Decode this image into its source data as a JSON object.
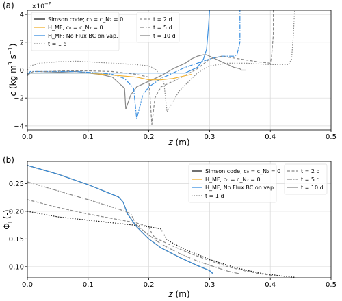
{
  "chart_data": [
    {
      "type": "line",
      "panel_label": "(a)",
      "xlabel_var": "z",
      "xlabel_unit": " (m)",
      "ylabel_var": "c",
      "ylabel_unit": " (kg m",
      "ylabel_exp1": "3",
      "ylabel_mid": " s",
      "ylabel_exp2": "−1",
      "ylabel_end": ")",
      "xlim": [
        0,
        0.5
      ],
      "ylim": [
        -4.3,
        4.3
      ],
      "xticks": [
        "0.0",
        "0.1",
        "0.2",
        "0.3",
        "0.4",
        "0.5"
      ],
      "yticks": [
        "−4",
        "−2",
        "0",
        "2",
        "4"
      ],
      "ytick_values": [
        -4,
        -2,
        0,
        2,
        4
      ],
      "offset_text_base": "×10",
      "offset_text_exp": "−6",
      "grid": true,
      "legend_method": [
        {
          "label": "Simson code; c₀ = c_N₂ = 0",
          "color": "#222222",
          "dash": ""
        },
        {
          "label": "H_MF; c₀ = c_N₂ = 0",
          "color": "#f0b030",
          "dash": ""
        },
        {
          "label": "H_MF; No Flux BC on vap.",
          "color": "#3a8fe0",
          "dash": ""
        },
        {
          "label": "t = 1 d",
          "color": "#888888",
          "dash": "1.5,2"
        }
      ],
      "legend_time": [
        {
          "label": "t = 2 d",
          "color": "#888888",
          "dash": "4,2.5"
        },
        {
          "label": "t = 5 d",
          "color": "#888888",
          "dash": "7,2,1.5,2"
        },
        {
          "label": "t = 10 d",
          "color": "#888888",
          "dash": ""
        }
      ],
      "series": [
        {
          "x": [
            0,
            0.005,
            0.02,
            0.05,
            0.08,
            0.1,
            0.12,
            0.14,
            0.15,
            0.16,
            0.162,
            0.17,
            0.18,
            0.2,
            0.22,
            0.24,
            0.26,
            0.27,
            0.28,
            0.29,
            0.295,
            0.3,
            0.32,
            0.34,
            0.35,
            0.352,
            0.36
          ],
          "y": [
            -0.4,
            -0.2,
            -0.2,
            -0.15,
            -0.1,
            -0.2,
            -0.3,
            -0.5,
            -0.9,
            -1.3,
            -2.8,
            -1.8,
            -1.2,
            -0.8,
            -0.4,
            0.1,
            0.5,
            0.8,
            1.0,
            1.1,
            1.1,
            1.0,
            0.6,
            0.2,
            0.1,
            0.0,
            0.0
          ],
          "color": "#888888",
          "dash": ""
        },
        {
          "x": [
            0,
            0.005,
            0.02,
            0.05,
            0.08,
            0.1,
            0.12,
            0.14,
            0.16,
            0.175,
            0.18,
            0.19,
            0.2,
            0.22,
            0.24,
            0.26,
            0.28,
            0.3,
            0.32,
            0.34,
            0.345,
            0.35,
            0.35
          ],
          "y": [
            -0.3,
            -0.1,
            -0.1,
            -0.1,
            -0.1,
            -0.15,
            -0.2,
            -0.3,
            -0.6,
            -1.3,
            -3.5,
            -1.8,
            -1.2,
            -0.6,
            -0.2,
            0.2,
            0.5,
            0.8,
            1.0,
            1.0,
            1.1,
            2.0,
            4.3
          ],
          "color": "#3a8fe0",
          "dash": "7,2,1.5,2"
        },
        {
          "x": [
            0,
            0.01,
            0.03,
            0.06,
            0.1,
            0.14,
            0.18,
            0.2,
            0.205,
            0.21,
            0.22,
            0.25,
            0.28,
            0.3,
            0.32,
            0.35,
            0.38,
            0.4,
            0.402,
            0.405,
            0.405
          ],
          "y": [
            -0.3,
            -0.1,
            -0.1,
            -0.05,
            -0.05,
            -0.1,
            -0.3,
            -0.5,
            -3.9,
            -2.0,
            -1.2,
            -0.6,
            0.1,
            0.8,
            1.0,
            0.8,
            0.6,
            0.5,
            1.0,
            2.5,
            4.3
          ],
          "color": "#888888",
          "dash": "4,2.5"
        },
        {
          "x": [
            0,
            0.005,
            0.02,
            0.05,
            0.08,
            0.1,
            0.14,
            0.18,
            0.2,
            0.21,
            0.22,
            0.225,
            0.23,
            0.25,
            0.28,
            0.3,
            0.33,
            0.36,
            0.4,
            0.43,
            0.435,
            0.438,
            0.44
          ],
          "y": [
            0.0,
            0.3,
            0.5,
            0.6,
            0.65,
            0.6,
            0.5,
            0.4,
            0.3,
            0.1,
            -0.4,
            -1.0,
            -3.0,
            -1.5,
            -0.2,
            0.3,
            0.5,
            0.5,
            0.4,
            0.4,
            0.8,
            2.5,
            4.3
          ],
          "color": "#888888",
          "dash": "1.5,2"
        },
        {
          "x": [
            0.003,
            0.1,
            0.18,
            0.2,
            0.22,
            0.24,
            0.26,
            0.27
          ],
          "y": [
            -0.2,
            -0.2,
            -0.5,
            -0.7,
            -0.7,
            -0.6,
            -0.4,
            -0.3
          ],
          "color": "#f0b030",
          "dash": ""
        },
        {
          "x": [
            0,
            0.26,
            0.28,
            0.29,
            0.295,
            0.298,
            0.3
          ],
          "y": [
            -0.2,
            -0.2,
            0.2,
            0.8,
            1.5,
            3.0,
            4.3
          ],
          "color": "#3a8fe0",
          "dash": ""
        }
      ]
    },
    {
      "type": "line",
      "panel_label": "(b)",
      "xlabel_var": "z",
      "xlabel_unit": " (m)",
      "ylabel_var": "Φ",
      "ylabel_sub": "l",
      "ylabel_unit": " (-)",
      "xlim": [
        0,
        0.5
      ],
      "ylim": [
        0.08,
        0.29
      ],
      "xticks": [
        "0.0",
        "0.1",
        "0.2",
        "0.3",
        "0.4",
        "0.5"
      ],
      "yticks": [
        "0.10",
        "0.15",
        "0.20",
        "0.25"
      ],
      "ytick_values": [
        0.1,
        0.15,
        0.2,
        0.25
      ],
      "grid": true,
      "legend_method": [
        {
          "label": "Simson code; c₀ = c_N₂ = 0",
          "color": "#222222",
          "dash": ""
        },
        {
          "label": "H_MF; c₀ = c_N₂ = 0",
          "color": "#f0b030",
          "dash": ""
        },
        {
          "label": "H_MF; No Flux BC on vap.",
          "color": "#3a8fe0",
          "dash": ""
        },
        {
          "label": "t = 1 d",
          "color": "#888888",
          "dash": "1.5,2"
        }
      ],
      "legend_time": [
        {
          "label": "t = 2 d",
          "color": "#888888",
          "dash": "4,2.5"
        },
        {
          "label": "t = 5 d",
          "color": "#888888",
          "dash": "7,2,1.5,2"
        },
        {
          "label": "t = 10 d",
          "color": "#888888",
          "dash": ""
        }
      ],
      "series": [
        {
          "x": [
            0,
            0.05,
            0.1,
            0.15,
            0.158,
            0.165,
            0.18,
            0.2,
            0.22,
            0.25,
            0.28,
            0.3,
            0.305
          ],
          "y": [
            0.283,
            0.267,
            0.248,
            0.226,
            0.216,
            0.195,
            0.172,
            0.15,
            0.134,
            0.117,
            0.102,
            0.093,
            0.088
          ],
          "color": "#f0b030",
          "dash": ""
        },
        {
          "x": [
            0,
            0.05,
            0.1,
            0.15,
            0.17,
            0.175,
            0.18,
            0.2,
            0.22,
            0.25,
            0.28,
            0.31,
            0.33,
            0.35
          ],
          "y": [
            0.253,
            0.237,
            0.221,
            0.204,
            0.196,
            0.185,
            0.175,
            0.157,
            0.141,
            0.124,
            0.11,
            0.099,
            0.092,
            0.087
          ],
          "color": "#888888",
          "dash": "7,2,1.5,2"
        },
        {
          "x": [
            0,
            0.05,
            0.1,
            0.15,
            0.18,
            0.2,
            0.205,
            0.21,
            0.24,
            0.27,
            0.3,
            0.33,
            0.36,
            0.39,
            0.405
          ],
          "y": [
            0.221,
            0.207,
            0.195,
            0.185,
            0.179,
            0.172,
            0.16,
            0.152,
            0.137,
            0.123,
            0.111,
            0.1,
            0.092,
            0.086,
            0.084
          ],
          "color": "#888888",
          "dash": "4,2.5"
        },
        {
          "x": [
            0,
            0.05,
            0.1,
            0.15,
            0.2,
            0.22,
            0.225,
            0.23,
            0.26,
            0.3,
            0.34,
            0.38,
            0.42,
            0.44
          ],
          "y": [
            0.2,
            0.19,
            0.184,
            0.178,
            0.172,
            0.168,
            0.158,
            0.148,
            0.131,
            0.113,
            0.099,
            0.089,
            0.083,
            0.081
          ],
          "color": "#888888",
          "dash": "1.5,2"
        },
        {
          "x": [
            0,
            0.05,
            0.1,
            0.15,
            0.2,
            0.22,
            0.225,
            0.23,
            0.26,
            0.3,
            0.34,
            0.38,
            0.42,
            0.44
          ],
          "y": [
            0.2,
            0.19,
            0.184,
            0.178,
            0.172,
            0.168,
            0.158,
            0.148,
            0.131,
            0.113,
            0.099,
            0.089,
            0.083,
            0.081
          ],
          "color": "#222222",
          "dash": "1.5,2"
        },
        {
          "x": [
            0,
            0.05,
            0.1,
            0.15,
            0.158,
            0.165,
            0.18,
            0.2,
            0.22,
            0.25,
            0.28,
            0.3,
            0.305
          ],
          "y": [
            0.283,
            0.267,
            0.248,
            0.226,
            0.216,
            0.195,
            0.172,
            0.15,
            0.134,
            0.117,
            0.102,
            0.093,
            0.088
          ],
          "color": "#222222",
          "dash": ""
        },
        {
          "x": [
            0,
            0.05,
            0.1,
            0.15,
            0.158,
            0.165,
            0.18,
            0.2,
            0.22,
            0.25,
            0.28,
            0.3,
            0.305
          ],
          "y": [
            0.283,
            0.267,
            0.248,
            0.226,
            0.216,
            0.195,
            0.172,
            0.15,
            0.134,
            0.117,
            0.102,
            0.093,
            0.088
          ],
          "color": "#3a8fe0",
          "dash": ""
        }
      ]
    }
  ]
}
